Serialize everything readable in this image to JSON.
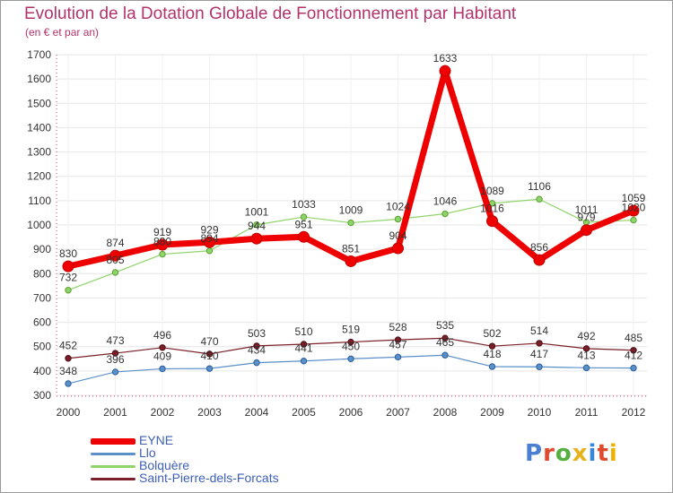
{
  "title": "Evolution de la Dotation Globale de Fonctionnement par Habitant",
  "subtitle": "(en € et par an)",
  "logo": {
    "text": "Proxiti",
    "colors": [
      "#4a7ed0",
      "#e0492c",
      "#55b040",
      "#e8b21c",
      "#3a86d8",
      "#e0492c",
      "#f0b000"
    ]
  },
  "chart_data": {
    "type": "line",
    "title": "Evolution de la Dotation Globale de Fonctionnement par Habitant",
    "subtitle": "(en € et par an)",
    "xlabel": "",
    "ylabel": "",
    "ylim": [
      300,
      1700
    ],
    "yticks": [
      300,
      400,
      500,
      600,
      700,
      800,
      900,
      1000,
      1100,
      1200,
      1300,
      1400,
      1500,
      1600,
      1700
    ],
    "grid": true,
    "legend_position": "bottom-left",
    "categories": [
      "2000",
      "2001",
      "2002",
      "2003",
      "2004",
      "2005",
      "2006",
      "2007",
      "2008",
      "2009",
      "2010",
      "2011",
      "2012"
    ],
    "series": [
      {
        "name": "Saint-Pierre-dels-Forcats",
        "color": "#7a1f28",
        "values": [
          452,
          473,
          496,
          470,
          503,
          510,
          519,
          528,
          535,
          502,
          514,
          492,
          485
        ],
        "labels": [
          "452",
          "473",
          "496",
          "470",
          "503",
          "510",
          "519",
          "528",
          "535",
          "502",
          "514",
          "492",
          "485"
        ]
      },
      {
        "name": "Llo",
        "color": "#5a8fc8",
        "values": [
          348,
          396,
          409,
          410,
          434,
          441,
          450,
          457,
          465,
          418,
          417,
          413,
          412
        ],
        "labels": [
          "348",
          "396",
          "409",
          "410",
          "434",
          "441",
          "450",
          "457",
          "465",
          "418",
          "417",
          "413",
          "412"
        ]
      },
      {
        "name": "Bolquère",
        "color": "#8fd46a",
        "values": [
          732,
          805,
          880,
          894,
          1001,
          1033,
          1009,
          1024,
          1046,
          1089,
          1106,
          1011,
          1020
        ],
        "labels": [
          "732",
          "805",
          "880",
          "894",
          "1001",
          "1033",
          "1009",
          "1024",
          "1046",
          "1089",
          "1106",
          "1011",
          "1020"
        ]
      },
      {
        "name": "EYNE",
        "color": "#ee0000",
        "values": [
          830,
          874,
          919,
          929,
          944,
          951,
          851,
          904,
          1633,
          1016,
          856,
          979,
          1059
        ],
        "labels": [
          "830",
          "874",
          "919",
          "929",
          "944",
          "951",
          "851",
          "904",
          "1633",
          "1016",
          "856",
          "979",
          "1059"
        ]
      }
    ]
  }
}
